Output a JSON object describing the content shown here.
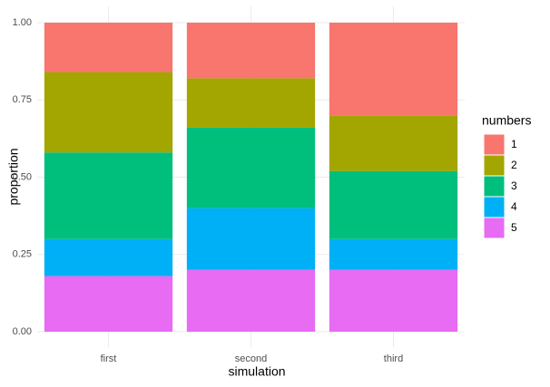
{
  "chart_data": {
    "type": "stacked_bar",
    "x_label": "simulation",
    "y_label": "proportion",
    "categories": [
      "first",
      "second",
      "third"
    ],
    "series": [
      {
        "name": "1",
        "color": "#F8766D",
        "values": [
          0.16,
          0.18,
          0.3
        ]
      },
      {
        "name": "2",
        "color": "#A3A500",
        "values": [
          0.26,
          0.16,
          0.18
        ]
      },
      {
        "name": "3",
        "color": "#00BF7D",
        "values": [
          0.28,
          0.26,
          0.22
        ]
      },
      {
        "name": "4",
        "color": "#00B0F6",
        "values": [
          0.12,
          0.2,
          0.1
        ]
      },
      {
        "name": "5",
        "color": "#E76BF3",
        "values": [
          0.18,
          0.2,
          0.2
        ]
      }
    ],
    "legend_title": "numbers",
    "ylim": [
      0,
      1
    ],
    "yticks": [
      {
        "value": 0,
        "label": "0.00"
      },
      {
        "value": 0.25,
        "label": "0.25"
      },
      {
        "value": 0.5,
        "label": "0.50"
      },
      {
        "value": 0.75,
        "label": "0.75"
      },
      {
        "value": 1,
        "label": "1.00"
      }
    ],
    "grid": true
  }
}
